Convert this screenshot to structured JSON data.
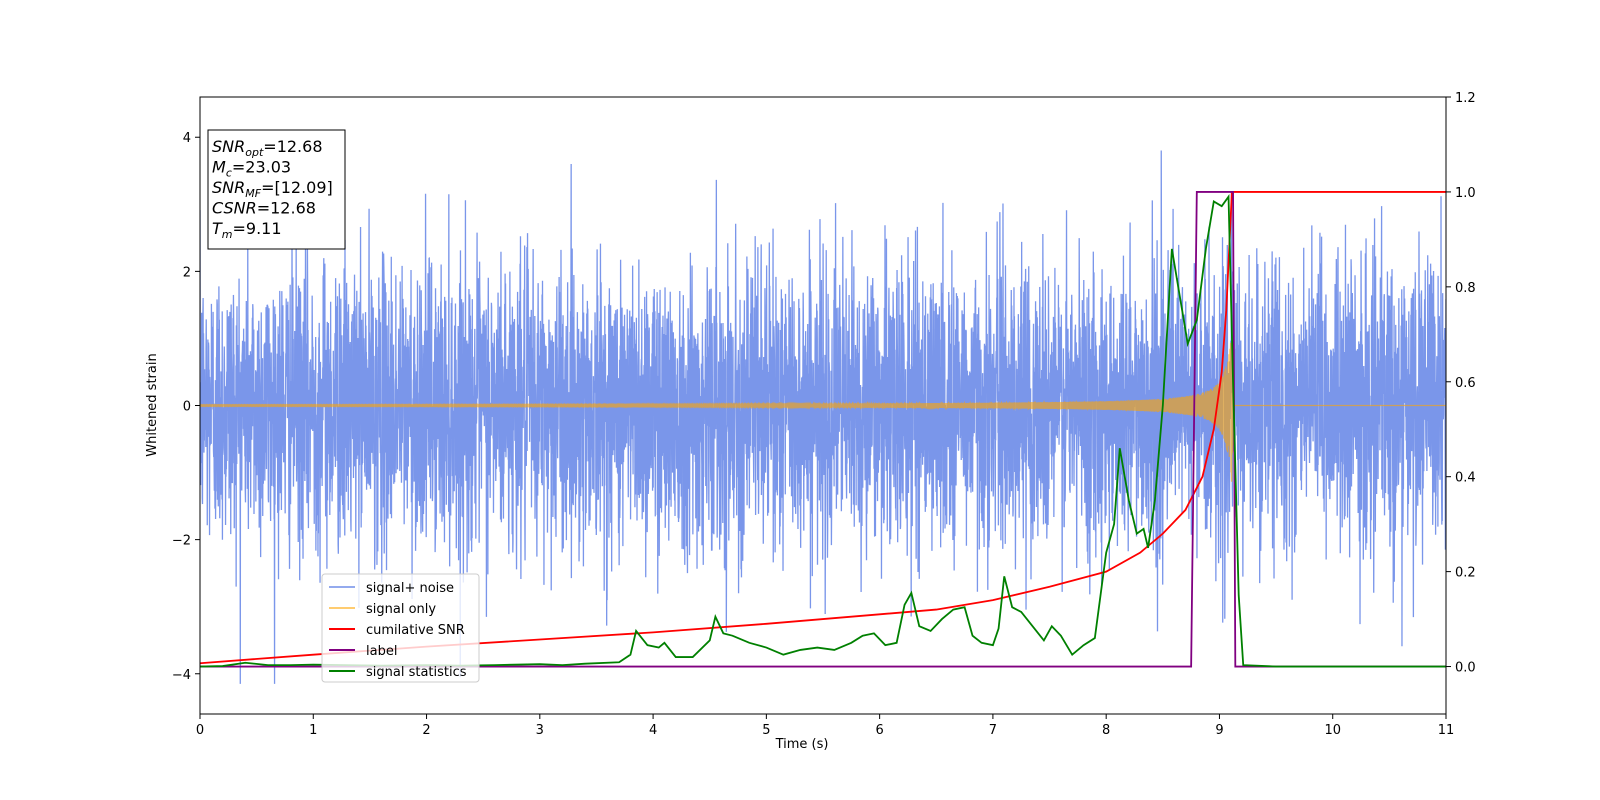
{
  "chart_data": {
    "type": "line",
    "xlabel": "Time (s)",
    "ylabel": "Whitened strain",
    "xlim": [
      0,
      11
    ],
    "ylim": [
      -4.6,
      4.6
    ],
    "y2lim": [
      -0.1,
      1.2
    ],
    "xticks": [
      "0",
      "1",
      "2",
      "3",
      "4",
      "5",
      "6",
      "7",
      "8",
      "9",
      "10",
      "11"
    ],
    "yticks": [
      "4",
      "2",
      "0",
      "−2",
      "−4"
    ],
    "y2ticks": [
      "0.0",
      "0.2",
      "0.4",
      "0.6",
      "0.8",
      "1.0",
      "1.2"
    ],
    "legend_position": "lower-left",
    "info_box": {
      "position": "top-left",
      "lines": [
        {
          "main": "SNR",
          "sub": "opt",
          "value": "=12.68"
        },
        {
          "main": "M",
          "sub": "c",
          "value": "=23.03"
        },
        {
          "main": "SNR",
          "sub": "MF",
          "value": "=[12.09]"
        },
        {
          "main": "CSNR",
          "sub": "",
          "value": "=12.68"
        },
        {
          "main": "T",
          "sub": "m",
          "value": "=9.11"
        }
      ]
    },
    "series": [
      {
        "name": "signal+ noise",
        "color": "#4169e1",
        "axis": "left",
        "kind": "noise",
        "noise_sigma": 1.0,
        "noise_max": 4.2,
        "noise_min": -4.15,
        "x_range": [
          0,
          11
        ]
      },
      {
        "name": "signal only",
        "color": "#ffa500",
        "axis": "left",
        "kind": "chirp",
        "merger_time": 9.11,
        "ringdown_end": 9.13,
        "peak_amplitude": 1.2,
        "x_range": [
          0,
          11
        ]
      },
      {
        "name": "cumilative SNR",
        "color": "#ff0000",
        "axis": "right",
        "points": [
          [
            0,
            0.007
          ],
          [
            1,
            0.025
          ],
          [
            2,
            0.042
          ],
          [
            3,
            0.057
          ],
          [
            4,
            0.072
          ],
          [
            5,
            0.09
          ],
          [
            6,
            0.11
          ],
          [
            6.5,
            0.12
          ],
          [
            7,
            0.14
          ],
          [
            7.5,
            0.168
          ],
          [
            8,
            0.2
          ],
          [
            8.3,
            0.24
          ],
          [
            8.5,
            0.28
          ],
          [
            8.7,
            0.33
          ],
          [
            8.85,
            0.4
          ],
          [
            8.95,
            0.5
          ],
          [
            9.02,
            0.62
          ],
          [
            9.06,
            0.75
          ],
          [
            9.08,
            0.85
          ],
          [
            9.1,
            0.95
          ],
          [
            9.11,
            1.0
          ],
          [
            11,
            1.0
          ]
        ]
      },
      {
        "name": "label",
        "color": "#800080",
        "axis": "right",
        "points": [
          [
            0,
            0.0
          ],
          [
            8.75,
            0.0
          ],
          [
            8.8,
            1.0
          ],
          [
            9.12,
            1.0
          ],
          [
            9.14,
            0.0
          ],
          [
            11,
            0.0
          ]
        ]
      },
      {
        "name": "signal statistics",
        "color": "#008000",
        "axis": "right",
        "points": [
          [
            0,
            0.0
          ],
          [
            0.2,
            0.001
          ],
          [
            0.4,
            0.008
          ],
          [
            0.6,
            0.003
          ],
          [
            0.8,
            0.003
          ],
          [
            1.0,
            0.004
          ],
          [
            1.3,
            0.003
          ],
          [
            1.6,
            0.002
          ],
          [
            2.0,
            0.003
          ],
          [
            2.3,
            0.002
          ],
          [
            2.6,
            0.003
          ],
          [
            3.0,
            0.005
          ],
          [
            3.2,
            0.003
          ],
          [
            3.4,
            0.006
          ],
          [
            3.7,
            0.009
          ],
          [
            3.8,
            0.025
          ],
          [
            3.85,
            0.075
          ],
          [
            3.95,
            0.045
          ],
          [
            4.05,
            0.04
          ],
          [
            4.1,
            0.05
          ],
          [
            4.2,
            0.02
          ],
          [
            4.35,
            0.02
          ],
          [
            4.5,
            0.055
          ],
          [
            4.55,
            0.105
          ],
          [
            4.62,
            0.07
          ],
          [
            4.7,
            0.065
          ],
          [
            4.85,
            0.05
          ],
          [
            5.0,
            0.04
          ],
          [
            5.15,
            0.025
          ],
          [
            5.3,
            0.035
          ],
          [
            5.45,
            0.04
          ],
          [
            5.6,
            0.035
          ],
          [
            5.75,
            0.05
          ],
          [
            5.85,
            0.065
          ],
          [
            5.95,
            0.07
          ],
          [
            6.05,
            0.045
          ],
          [
            6.15,
            0.05
          ],
          [
            6.22,
            0.13
          ],
          [
            6.28,
            0.155
          ],
          [
            6.35,
            0.085
          ],
          [
            6.45,
            0.075
          ],
          [
            6.55,
            0.1
          ],
          [
            6.65,
            0.12
          ],
          [
            6.75,
            0.125
          ],
          [
            6.82,
            0.065
          ],
          [
            6.9,
            0.05
          ],
          [
            7.0,
            0.045
          ],
          [
            7.05,
            0.08
          ],
          [
            7.1,
            0.19
          ],
          [
            7.17,
            0.125
          ],
          [
            7.25,
            0.115
          ],
          [
            7.35,
            0.085
          ],
          [
            7.45,
            0.055
          ],
          [
            7.52,
            0.085
          ],
          [
            7.6,
            0.065
          ],
          [
            7.7,
            0.025
          ],
          [
            7.8,
            0.045
          ],
          [
            7.9,
            0.06
          ],
          [
            8.0,
            0.24
          ],
          [
            8.07,
            0.3
          ],
          [
            8.12,
            0.46
          ],
          [
            8.2,
            0.35
          ],
          [
            8.27,
            0.28
          ],
          [
            8.33,
            0.29
          ],
          [
            8.37,
            0.25
          ],
          [
            8.43,
            0.35
          ],
          [
            8.5,
            0.55
          ],
          [
            8.58,
            0.88
          ],
          [
            8.65,
            0.78
          ],
          [
            8.72,
            0.68
          ],
          [
            8.8,
            0.73
          ],
          [
            8.88,
            0.88
          ],
          [
            8.95,
            0.98
          ],
          [
            9.02,
            0.97
          ],
          [
            9.08,
            0.99
          ],
          [
            9.12,
            0.6
          ],
          [
            9.17,
            0.15
          ],
          [
            9.21,
            0.003
          ],
          [
            9.5,
            0.0
          ],
          [
            11,
            0.0
          ]
        ]
      }
    ]
  }
}
